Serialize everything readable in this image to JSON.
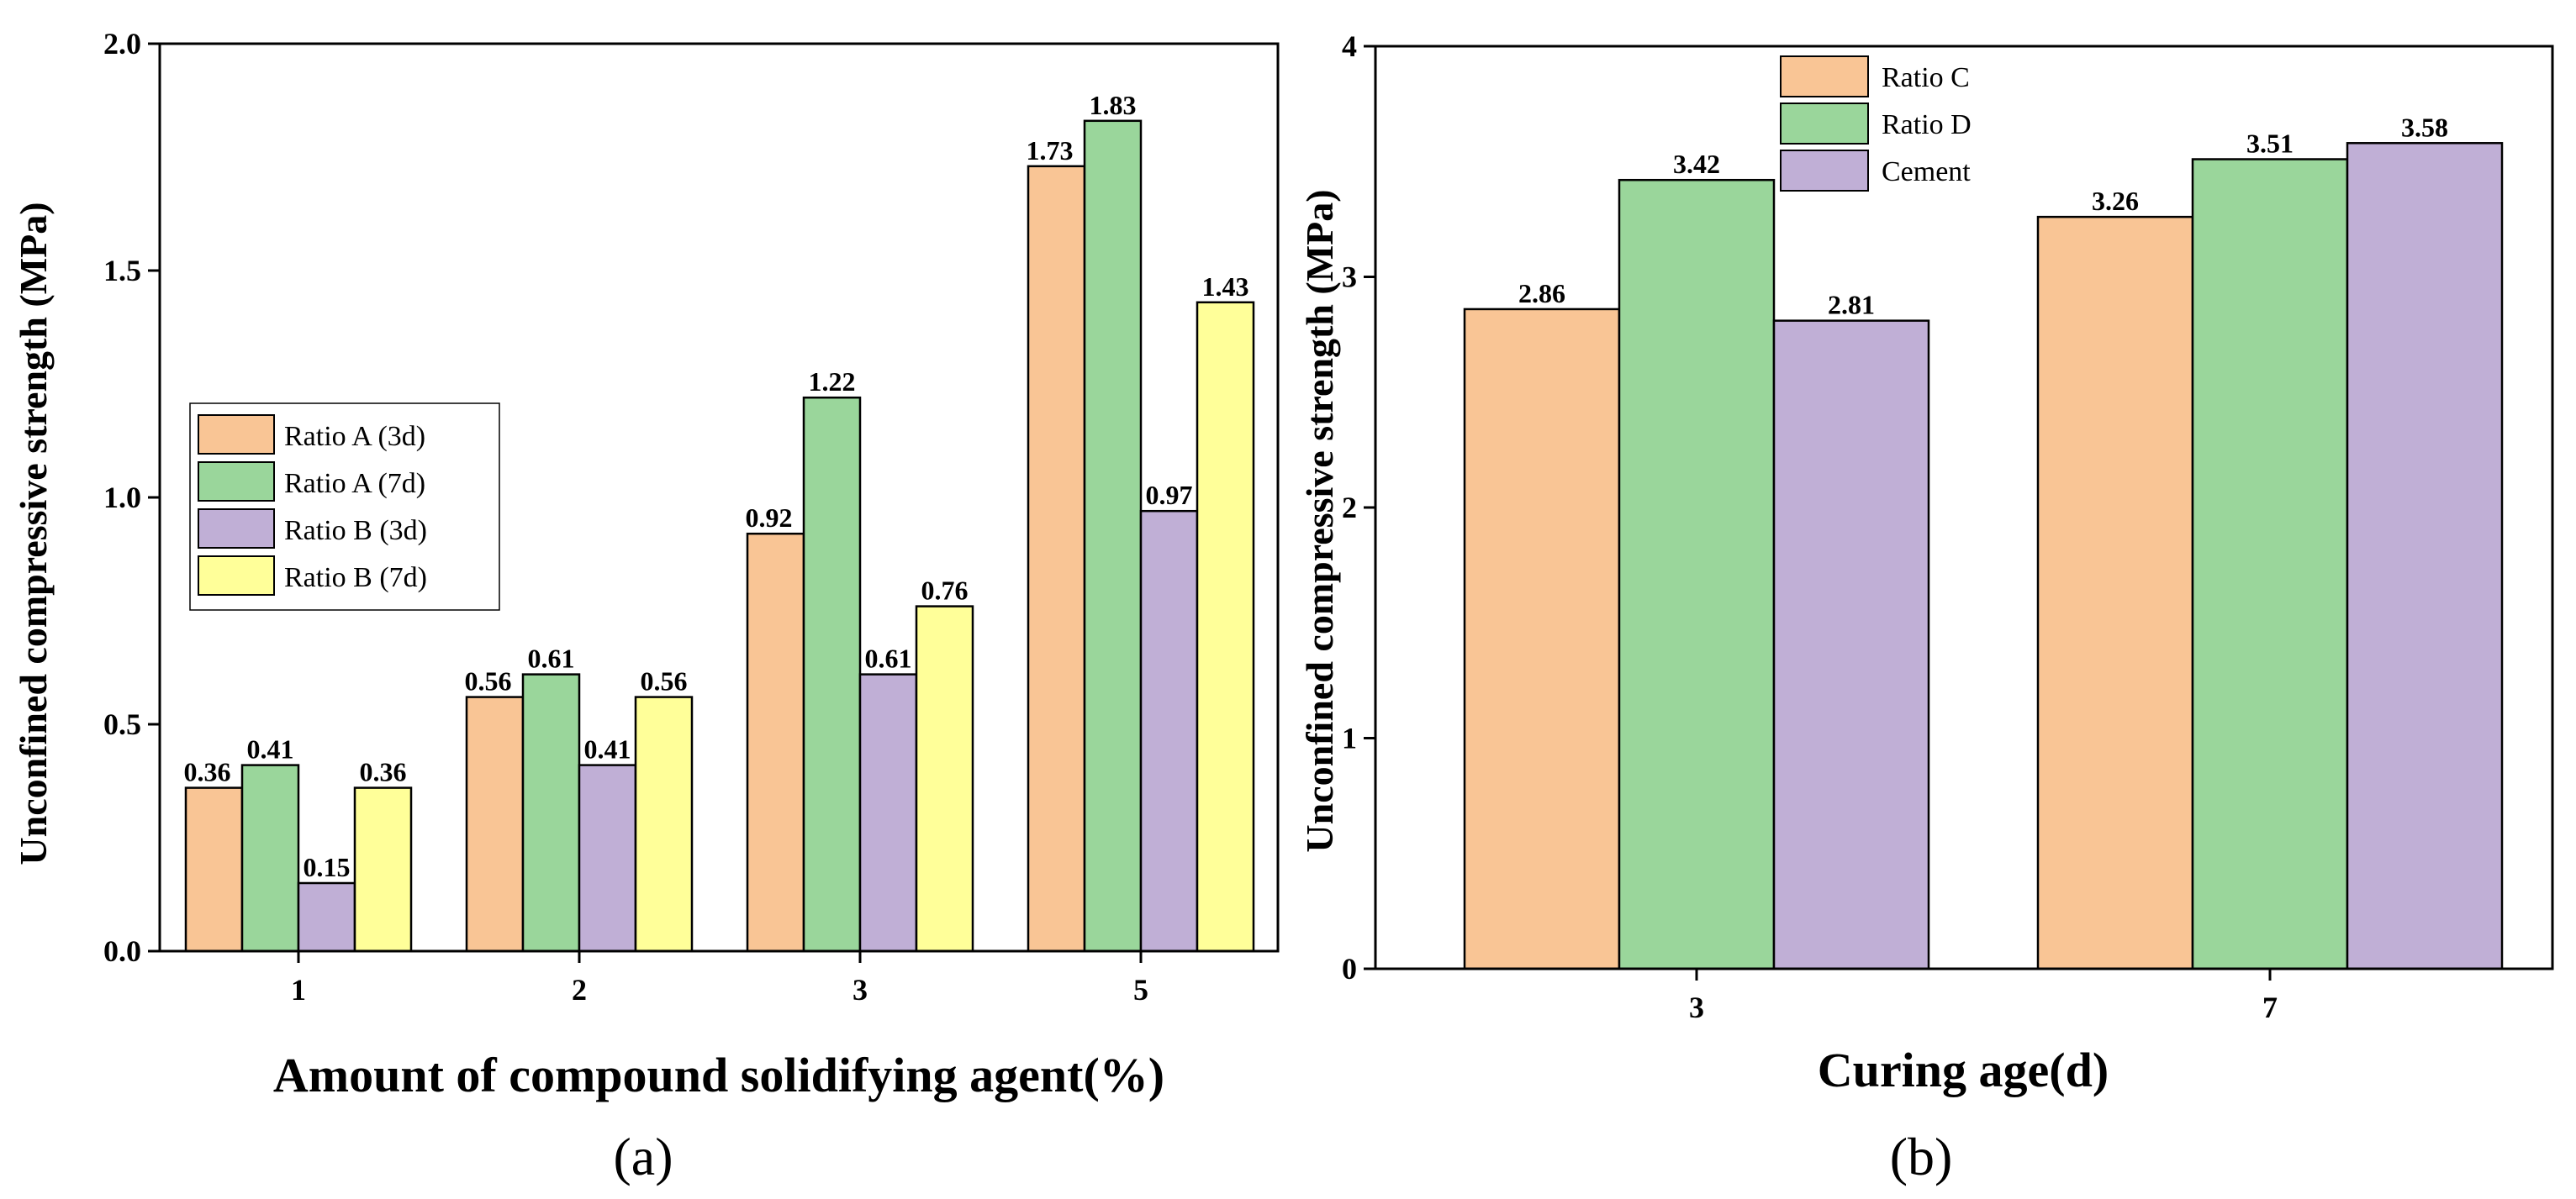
{
  "chart_data": [
    {
      "type": "bar",
      "panel": "(a)",
      "categories": [
        "1",
        "2",
        "3",
        "5"
      ],
      "series": [
        {
          "name": "Ratio A (3d)",
          "color": "#f9c595",
          "values": [
            0.36,
            0.56,
            0.92,
            1.73
          ]
        },
        {
          "name": "Ratio A (7d)",
          "color": "#9ad69b",
          "values": [
            0.41,
            0.61,
            1.22,
            1.83
          ]
        },
        {
          "name": "Ratio B (3d)",
          "color": "#c0afd6",
          "values": [
            0.15,
            0.41,
            0.61,
            0.97
          ]
        },
        {
          "name": "Ratio B (7d)",
          "color": "#ffff99",
          "values": [
            0.36,
            0.56,
            0.76,
            1.43
          ]
        }
      ],
      "xlabel": "Amount of compound solidifying agent(%)",
      "ylabel": "Unconfined compressive strength (MPa)",
      "ylim": [
        0,
        2.0
      ],
      "yticks": [
        "0.0",
        "0.5",
        "1.0",
        "1.5",
        "2.0"
      ],
      "legend_position": "center-left"
    },
    {
      "type": "bar",
      "panel": "(b)",
      "categories": [
        "3",
        "7"
      ],
      "series": [
        {
          "name": "Ratio C",
          "color": "#f9c595",
          "values": [
            2.86,
            3.26
          ]
        },
        {
          "name": "Ratio D",
          "color": "#9ad69b",
          "values": [
            3.42,
            3.51
          ]
        },
        {
          "name": "Cement",
          "color": "#c0afd6",
          "values": [
            2.81,
            3.58
          ]
        }
      ],
      "xlabel": "Curing age(d)",
      "ylabel": "Unconfined compressive strength (MPa)",
      "ylim": [
        0,
        4
      ],
      "yticks": [
        "0",
        "1",
        "2",
        "3",
        "4"
      ],
      "legend_position": "top-left"
    }
  ]
}
